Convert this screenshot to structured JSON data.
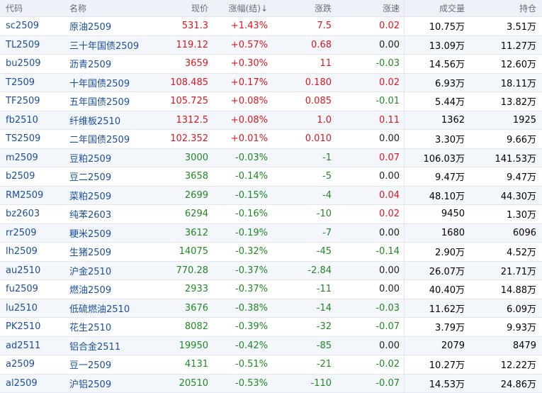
{
  "headers": {
    "code": "代码",
    "name": "名称",
    "price": "现价",
    "pct": "涨幅(结)↓",
    "chg": "涨跌",
    "speed": "涨速",
    "volume": "成交量",
    "oi": "持仓"
  },
  "colors": {
    "up": "#e0161e",
    "down": "#1f8a22",
    "flat": "#222222",
    "link": "#1a4fa0"
  },
  "rows": [
    {
      "code": "sc2509",
      "name": "原油2509",
      "price": "531.3",
      "pct": "+1.43%",
      "chg": "7.5",
      "speed": "0.02",
      "volume": "10.75万",
      "oi": "3.51万"
    },
    {
      "code": "TL2509",
      "name": "三十年国债2509",
      "price": "119.12",
      "pct": "+0.57%",
      "chg": "0.68",
      "speed": "0.00",
      "volume": "13.09万",
      "oi": "11.27万"
    },
    {
      "code": "bu2509",
      "name": "沥青2509",
      "price": "3659",
      "pct": "+0.30%",
      "chg": "11",
      "speed": "-0.03",
      "volume": "14.56万",
      "oi": "12.60万"
    },
    {
      "code": "T2509",
      "name": "十年国债2509",
      "price": "108.485",
      "pct": "+0.17%",
      "chg": "0.180",
      "speed": "0.02",
      "volume": "6.93万",
      "oi": "18.11万"
    },
    {
      "code": "TF2509",
      "name": "五年国债2509",
      "price": "105.725",
      "pct": "+0.08%",
      "chg": "0.085",
      "speed": "-0.01",
      "volume": "5.44万",
      "oi": "13.82万"
    },
    {
      "code": "fb2510",
      "name": "纤维板2510",
      "price": "1312.5",
      "pct": "+0.08%",
      "chg": "1.0",
      "speed": "0.11",
      "volume": "1362",
      "oi": "1925"
    },
    {
      "code": "TS2509",
      "name": "二年国债2509",
      "price": "102.352",
      "pct": "+0.01%",
      "chg": "0.010",
      "speed": "0.00",
      "volume": "3.30万",
      "oi": "9.66万"
    },
    {
      "code": "m2509",
      "name": "豆粕2509",
      "price": "3000",
      "pct": "-0.03%",
      "chg": "-1",
      "speed": "0.07",
      "volume": "106.03万",
      "oi": "141.53万"
    },
    {
      "code": "b2509",
      "name": "豆二2509",
      "price": "3658",
      "pct": "-0.14%",
      "chg": "-5",
      "speed": "0.00",
      "volume": "9.47万",
      "oi": "9.47万"
    },
    {
      "code": "RM2509",
      "name": "菜粕2509",
      "price": "2699",
      "pct": "-0.15%",
      "chg": "-4",
      "speed": "0.04",
      "volume": "48.10万",
      "oi": "44.30万"
    },
    {
      "code": "bz2603",
      "name": "纯苯2603",
      "price": "6294",
      "pct": "-0.16%",
      "chg": "-10",
      "speed": "0.02",
      "volume": "9450",
      "oi": "1.30万"
    },
    {
      "code": "rr2509",
      "name": "粳米2509",
      "price": "3612",
      "pct": "-0.19%",
      "chg": "-7",
      "speed": "0.00",
      "volume": "1680",
      "oi": "6096"
    },
    {
      "code": "lh2509",
      "name": "生猪2509",
      "price": "14075",
      "pct": "-0.32%",
      "chg": "-45",
      "speed": "-0.14",
      "volume": "2.90万",
      "oi": "4.52万"
    },
    {
      "code": "au2510",
      "name": "沪金2510",
      "price": "770.28",
      "pct": "-0.37%",
      "chg": "-2.84",
      "speed": "0.00",
      "volume": "26.07万",
      "oi": "21.71万"
    },
    {
      "code": "fu2509",
      "name": "燃油2509",
      "price": "2933",
      "pct": "-0.37%",
      "chg": "-11",
      "speed": "0.00",
      "volume": "40.40万",
      "oi": "14.88万"
    },
    {
      "code": "lu2510",
      "name": "低硫燃油2510",
      "price": "3676",
      "pct": "-0.38%",
      "chg": "-14",
      "speed": "-0.03",
      "volume": "11.62万",
      "oi": "6.09万"
    },
    {
      "code": "PK2510",
      "name": "花生2510",
      "price": "8082",
      "pct": "-0.39%",
      "chg": "-32",
      "speed": "-0.07",
      "volume": "3.79万",
      "oi": "9.93万"
    },
    {
      "code": "ad2511",
      "name": "铝合金2511",
      "price": "19950",
      "pct": "-0.42%",
      "chg": "-85",
      "speed": "0.00",
      "volume": "2079",
      "oi": "8479"
    },
    {
      "code": "a2509",
      "name": "豆一2509",
      "price": "4131",
      "pct": "-0.51%",
      "chg": "-21",
      "speed": "-0.02",
      "volume": "10.27万",
      "oi": "12.22万"
    },
    {
      "code": "al2509",
      "name": "沪铝2509",
      "price": "20510",
      "pct": "-0.53%",
      "chg": "-110",
      "speed": "-0.07",
      "volume": "14.53万",
      "oi": "24.86万"
    }
  ]
}
